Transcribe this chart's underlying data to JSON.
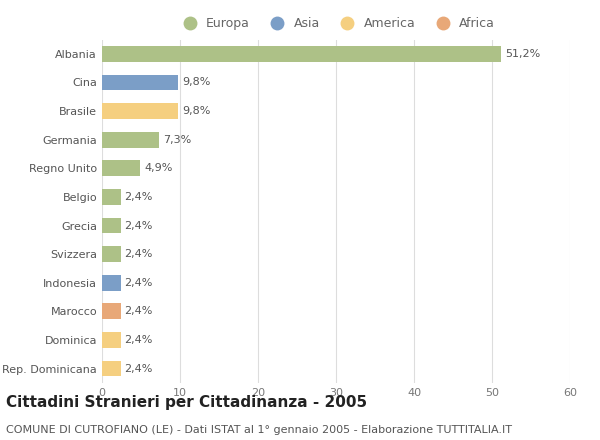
{
  "categories": [
    "Albania",
    "Cina",
    "Brasile",
    "Germania",
    "Regno Unito",
    "Belgio",
    "Grecia",
    "Svizzera",
    "Indonesia",
    "Marocco",
    "Dominica",
    "Rep. Dominicana"
  ],
  "values": [
    51.2,
    9.8,
    9.8,
    7.3,
    4.9,
    2.4,
    2.4,
    2.4,
    2.4,
    2.4,
    2.4,
    2.4
  ],
  "labels": [
    "51,2%",
    "9,8%",
    "9,8%",
    "7,3%",
    "4,9%",
    "2,4%",
    "2,4%",
    "2,4%",
    "2,4%",
    "2,4%",
    "2,4%",
    "2,4%"
  ],
  "continents": [
    "Europa",
    "Asia",
    "America",
    "Europa",
    "Europa",
    "Europa",
    "Europa",
    "Europa",
    "Asia",
    "Africa",
    "America",
    "America"
  ],
  "colors": {
    "Europa": "#adc187",
    "Asia": "#7b9ec7",
    "America": "#f5cf80",
    "Africa": "#e8a878"
  },
  "xlim": [
    0,
    60
  ],
  "xticks": [
    0,
    10,
    20,
    30,
    40,
    50,
    60
  ],
  "title": "Cittadini Stranieri per Cittadinanza - 2005",
  "subtitle": "COMUNE DI CUTROFIANO (LE) - Dati ISTAT al 1° gennaio 2005 - Elaborazione TUTTITALIA.IT",
  "background_color": "#ffffff",
  "bar_height": 0.55,
  "title_fontsize": 11,
  "subtitle_fontsize": 8,
  "label_fontsize": 8,
  "tick_fontsize": 8,
  "legend_order": [
    "Europa",
    "Asia",
    "America",
    "Africa"
  ]
}
